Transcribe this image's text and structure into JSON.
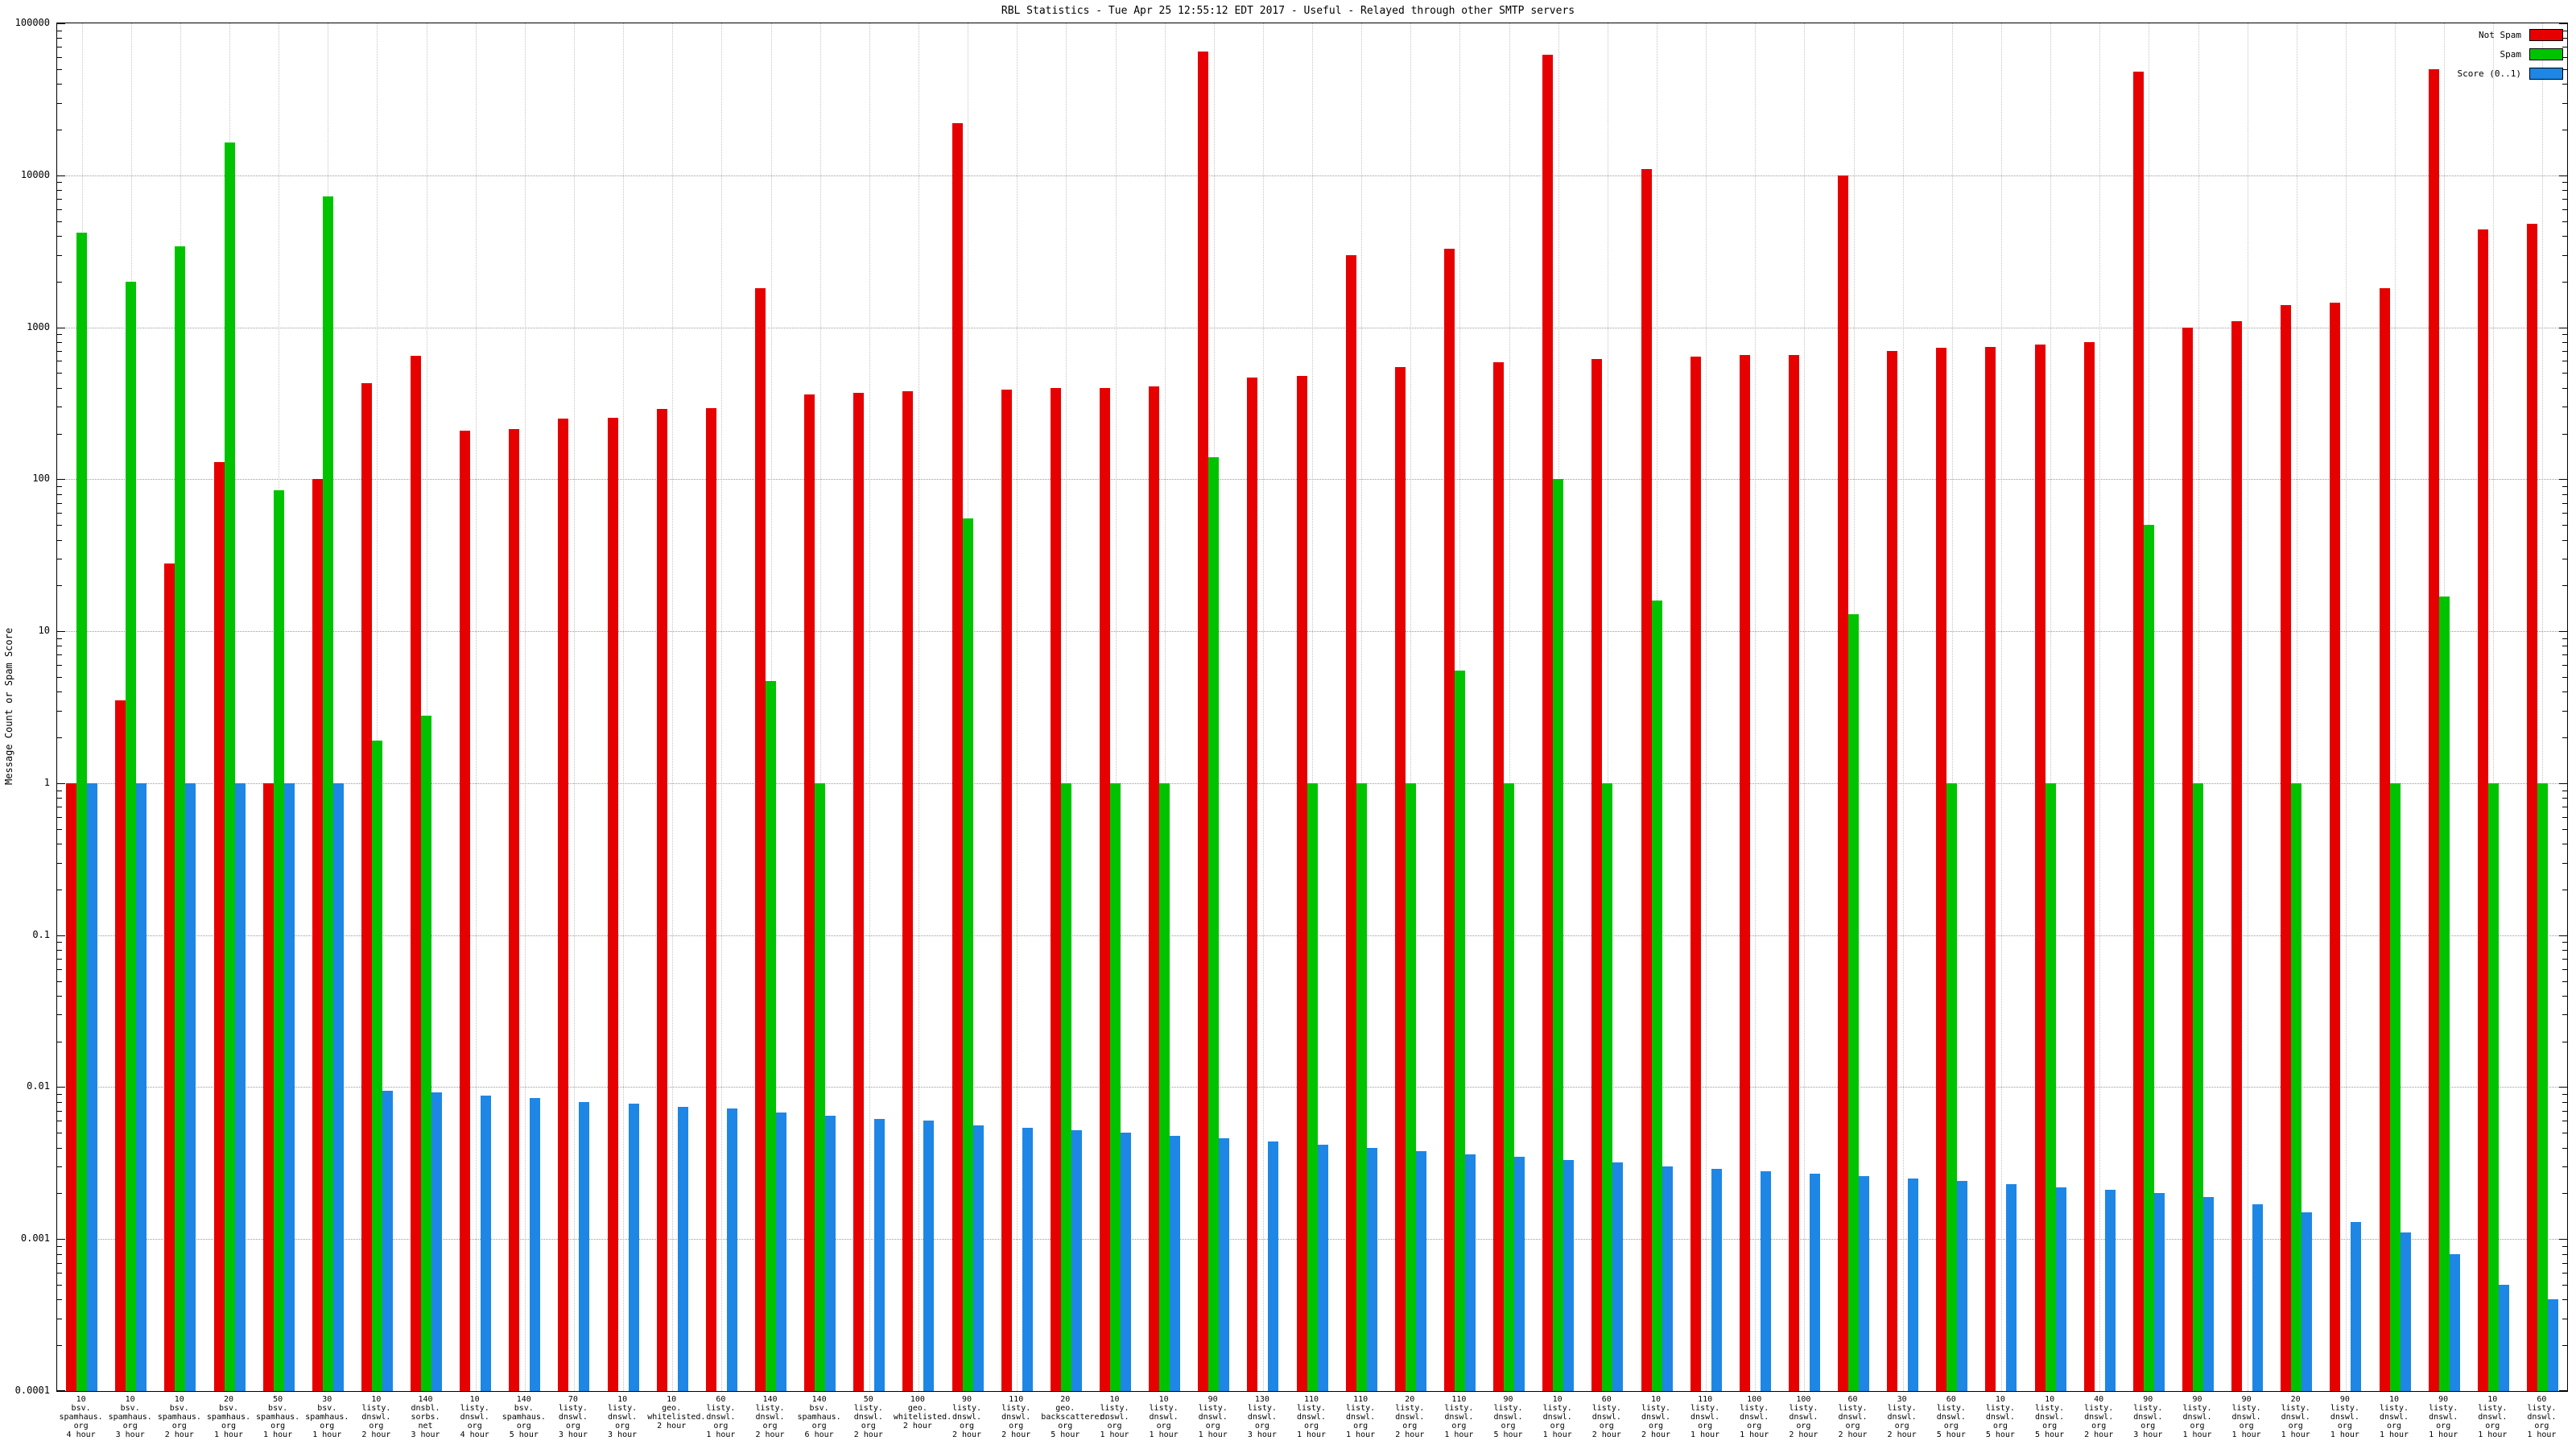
{
  "header": {
    "title": "RBL Statistics - Tue Apr 25 12:55:12 EDT 2017 - Useful - Relayed through other SMTP servers"
  },
  "axes": {
    "ylabel": "Message Count or Spam Score"
  },
  "chart_data": {
    "type": "bar",
    "y_scale": "log",
    "ylim": [
      0.0001,
      100000
    ],
    "yticks": [
      100000,
      10000,
      1000,
      100,
      10,
      1,
      0.1,
      0.01,
      0.001,
      0.0001
    ],
    "grid": true,
    "legend_position": "top-right-inside",
    "categories": [
      [
        "10",
        "bsv.",
        "spamhaus.",
        "org",
        "4 hour"
      ],
      [
        "10",
        "bsv.",
        "spamhaus.",
        "org",
        "3 hour"
      ],
      [
        "10",
        "bsv.",
        "spamhaus.",
        "org",
        "2 hour"
      ],
      [
        "20",
        "bsv.",
        "spamhaus.",
        "org",
        "1 hour"
      ],
      [
        "50",
        "bsv.",
        "spamhaus.",
        "org",
        "1 hour"
      ],
      [
        "30",
        "bsv.",
        "spamhaus.",
        "org",
        "1 hour"
      ],
      [
        "10",
        "listy.",
        "dnswl.",
        "org",
        "2 hour"
      ],
      [
        "140",
        "dnsbl.",
        "sorbs.",
        "net",
        "3 hour"
      ],
      [
        "10",
        "listy.",
        "dnswl.",
        "org",
        "4 hour"
      ],
      [
        "140",
        "bsv.",
        "spamhaus.",
        "org",
        "5 hour"
      ],
      [
        "70",
        "listy.",
        "dnswl.",
        "org",
        "3 hour"
      ],
      [
        "10",
        "listy.",
        "dnswl.",
        "org",
        "3 hour"
      ],
      [
        "10",
        "geo.",
        "whitelisted.",
        "2 hour"
      ],
      [
        "60",
        "listy.",
        "dnswl.",
        "org",
        "1 hour"
      ],
      [
        "140",
        "listy.",
        "dnswl.",
        "org",
        "2 hour"
      ],
      [
        "140",
        "bsv.",
        "spamhaus.",
        "org",
        "6 hour"
      ],
      [
        "50",
        "listy.",
        "dnswl.",
        "org",
        "2 hour"
      ],
      [
        "100",
        "geo.",
        "whitelisted.",
        "2 hour"
      ],
      [
        "90",
        "listy.",
        "dnswl.",
        "org",
        "2 hour"
      ],
      [
        "110",
        "listy.",
        "dnswl.",
        "org",
        "2 hour"
      ],
      [
        "20",
        "geo.",
        "backscatterer.",
        "org",
        "5 hour"
      ],
      [
        "10",
        "listy.",
        "dnswl.",
        "org",
        "1 hour"
      ],
      [
        "10",
        "listy.",
        "dnswl.",
        "org",
        "1 hour"
      ],
      [
        "90",
        "listy.",
        "dnswl.",
        "org",
        "1 hour"
      ],
      [
        "130",
        "listy.",
        "dnswl.",
        "org",
        "3 hour"
      ],
      [
        "110",
        "listy.",
        "dnswl.",
        "org",
        "1 hour"
      ],
      [
        "110",
        "listy.",
        "dnswl.",
        "org",
        "1 hour"
      ],
      [
        "20",
        "listy.",
        "dnswl.",
        "org",
        "2 hour"
      ],
      [
        "110",
        "listy.",
        "dnswl.",
        "org",
        "1 hour"
      ],
      [
        "90",
        "listy.",
        "dnswl.",
        "org",
        "5 hour"
      ],
      [
        "10",
        "listy.",
        "dnswl.",
        "org",
        "1 hour"
      ],
      [
        "60",
        "listy.",
        "dnswl.",
        "org",
        "2 hour"
      ],
      [
        "10",
        "listy.",
        "dnswl.",
        "org",
        "2 hour"
      ],
      [
        "110",
        "listy.",
        "dnswl.",
        "org",
        "1 hour"
      ],
      [
        "100",
        "listy.",
        "dnswl.",
        "org",
        "1 hour"
      ],
      [
        "100",
        "listy.",
        "dnswl.",
        "org",
        "2 hour"
      ],
      [
        "60",
        "listy.",
        "dnswl.",
        "org",
        "2 hour"
      ],
      [
        "30",
        "listy.",
        "dnswl.",
        "org",
        "2 hour"
      ],
      [
        "60",
        "listy.",
        "dnswl.",
        "org",
        "5 hour"
      ],
      [
        "10",
        "listy.",
        "dnswl.",
        "org",
        "5 hour"
      ],
      [
        "10",
        "listy.",
        "dnswl.",
        "org",
        "5 hour"
      ],
      [
        "40",
        "listy.",
        "dnswl.",
        "org",
        "2 hour"
      ],
      [
        "90",
        "listy.",
        "dnswl.",
        "org",
        "3 hour"
      ],
      [
        "90",
        "listy.",
        "dnswl.",
        "org",
        "1 hour"
      ],
      [
        "90",
        "listy.",
        "dnswl.",
        "org",
        "1 hour"
      ],
      [
        "20",
        "listy.",
        "dnswl.",
        "org",
        "1 hour"
      ],
      [
        "90",
        "listy.",
        "dnswl.",
        "org",
        "1 hour"
      ],
      [
        "10",
        "listy.",
        "dnswl.",
        "org",
        "1 hour"
      ],
      [
        "90",
        "listy.",
        "dnswl.",
        "org",
        "1 hour"
      ],
      [
        "10",
        "listy.",
        "dnswl.",
        "org",
        "1 hour"
      ],
      [
        "60",
        "listy.",
        "dnswl.",
        "org",
        "1 hour"
      ]
    ],
    "series": [
      {
        "name": "Not Spam",
        "color": "#e60000",
        "values": [
          1,
          3.5,
          28,
          130,
          1,
          100,
          430,
          650,
          210,
          215,
          250,
          255,
          290,
          295,
          1800,
          360,
          370,
          380,
          22000,
          390,
          400,
          400,
          410,
          65000,
          470,
          480,
          3000,
          550,
          3300,
          590,
          62000,
          620,
          11000,
          640,
          660,
          660,
          10000,
          700,
          730,
          740,
          770,
          800,
          48000,
          1000,
          1100,
          1400,
          1450,
          1800,
          50000,
          4400,
          4800
        ]
      },
      {
        "name": "Spam",
        "color": "#00c300",
        "values": [
          4200,
          2000,
          3400,
          16500,
          85,
          7300,
          1.9,
          2.8,
          0,
          0,
          0,
          0,
          0,
          0,
          4.7,
          1,
          0,
          0,
          55,
          0,
          1,
          1,
          1,
          140,
          0,
          1,
          1,
          1,
          5.5,
          1,
          100,
          1,
          16,
          0,
          0,
          0,
          13,
          0,
          1,
          0,
          1,
          0,
          50,
          1,
          0,
          1,
          0,
          1,
          17,
          1,
          1
        ]
      },
      {
        "name": "Score (0..1)",
        "color": "#1e86e5",
        "values": [
          1,
          1,
          1,
          1,
          1,
          1,
          0.0095,
          0.0092,
          0.0088,
          0.0085,
          0.008,
          0.0078,
          0.0074,
          0.0072,
          0.0068,
          0.0065,
          0.0062,
          0.006,
          0.0056,
          0.0054,
          0.0052,
          0.005,
          0.0048,
          0.0046,
          0.0044,
          0.0042,
          0.004,
          0.0038,
          0.0036,
          0.0035,
          0.0033,
          0.0032,
          0.003,
          0.0029,
          0.0028,
          0.0027,
          0.0026,
          0.0025,
          0.0024,
          0.0023,
          0.0022,
          0.0021,
          0.002,
          0.0019,
          0.0017,
          0.0015,
          0.0013,
          0.0011,
          0.0008,
          0.0005,
          0.0004
        ]
      }
    ]
  }
}
